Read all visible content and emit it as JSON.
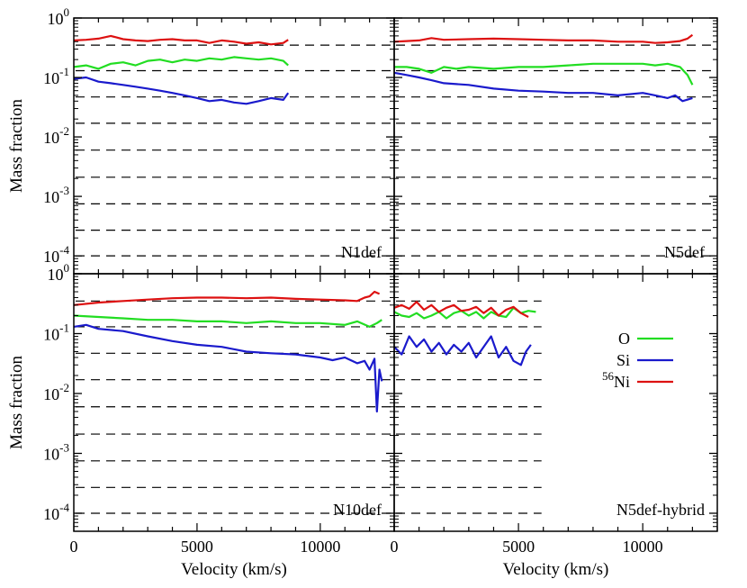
{
  "chart_data": {
    "type": "line",
    "layout": "2x2 panels, shared axes",
    "ylabel": "Mass fraction",
    "xlabel": "Velocity (km/s)",
    "xlim": [
      0,
      13000
    ],
    "ylim": [
      5e-05,
      1
    ],
    "yscale": "log",
    "x_ticks": [
      0,
      5000,
      10000
    ],
    "x_tick_labels": [
      "0",
      "5000",
      "10000"
    ],
    "y_ticks": [
      1,
      0.1,
      0.01,
      0.001,
      0.0001
    ],
    "y_tick_labels": [
      {
        "base": "10",
        "exp": "0"
      },
      {
        "base": "10",
        "exp": "-1"
      },
      {
        "base": "10",
        "exp": "-2"
      },
      {
        "base": "10",
        "exp": "-3"
      },
      {
        "base": "10",
        "exp": "-4"
      }
    ],
    "dashed_reference_levels": [
      0.35,
      0.13,
      0.047,
      0.017,
      0.006,
      0.0021,
      0.00075,
      0.00027,
      0.0001
    ],
    "legend": {
      "placement": "right-middle of bottom-right panel",
      "entries": [
        {
          "label": "O",
          "color": "#22dd22"
        },
        {
          "label": "Si",
          "color": "#1a1acc"
        },
        {
          "label_sup": "56",
          "label": "Ni",
          "color": "#dd1111"
        }
      ]
    },
    "colors": {
      "O": "#22dd22",
      "Si": "#1a1acc",
      "Ni56": "#dd1111"
    },
    "panels": [
      {
        "label": "N1def",
        "position": "top-left",
        "dash_xmax": 13000,
        "series": [
          {
            "name": "O",
            "x": [
              0,
              500,
              1000,
              1500,
              2000,
              2500,
              3000,
              3500,
              4000,
              4500,
              5000,
              5500,
              6000,
              6500,
              7000,
              7500,
              8000,
              8500,
              8700
            ],
            "y": [
              0.15,
              0.16,
              0.14,
              0.17,
              0.18,
              0.16,
              0.19,
              0.2,
              0.18,
              0.2,
              0.19,
              0.21,
              0.2,
              0.22,
              0.21,
              0.2,
              0.21,
              0.19,
              0.16
            ]
          },
          {
            "name": "Si",
            "x": [
              0,
              500,
              1000,
              1500,
              2000,
              2500,
              3000,
              3500,
              4000,
              4500,
              5000,
              5500,
              6000,
              6500,
              7000,
              7500,
              8000,
              8500,
              8700
            ],
            "y": [
              0.095,
              0.1,
              0.085,
              0.08,
              0.075,
              0.07,
              0.065,
              0.06,
              0.055,
              0.05,
              0.045,
              0.04,
              0.042,
              0.038,
              0.036,
              0.04,
              0.045,
              0.042,
              0.055
            ]
          },
          {
            "name": "56Ni",
            "x": [
              0,
              500,
              1000,
              1500,
              2000,
              2500,
              3000,
              3500,
              4000,
              4500,
              5000,
              5500,
              6000,
              6500,
              7000,
              7500,
              8000,
              8500,
              8700
            ],
            "y": [
              0.42,
              0.43,
              0.45,
              0.5,
              0.44,
              0.42,
              0.41,
              0.43,
              0.44,
              0.42,
              0.42,
              0.38,
              0.42,
              0.4,
              0.37,
              0.39,
              0.36,
              0.38,
              0.43
            ]
          }
        ]
      },
      {
        "label": "N5def",
        "position": "top-right",
        "dash_xmax": 13000,
        "series": [
          {
            "name": "O",
            "x": [
              0,
              500,
              1000,
              1500,
              2000,
              2500,
              3000,
              4000,
              5000,
              6000,
              7000,
              8000,
              9000,
              10000,
              10500,
              11000,
              11500,
              11800,
              12000
            ],
            "y": [
              0.15,
              0.15,
              0.14,
              0.12,
              0.15,
              0.14,
              0.15,
              0.14,
              0.15,
              0.15,
              0.16,
              0.17,
              0.17,
              0.17,
              0.16,
              0.17,
              0.15,
              0.11,
              0.075
            ]
          },
          {
            "name": "Si",
            "x": [
              0,
              500,
              1000,
              1500,
              2000,
              3000,
              4000,
              5000,
              6000,
              7000,
              8000,
              9000,
              10000,
              10500,
              11000,
              11300,
              11600,
              12000
            ],
            "y": [
              0.12,
              0.11,
              0.1,
              0.09,
              0.08,
              0.075,
              0.065,
              0.06,
              0.058,
              0.055,
              0.055,
              0.05,
              0.055,
              0.05,
              0.045,
              0.05,
              0.04,
              0.045
            ]
          },
          {
            "name": "56Ni",
            "x": [
              0,
              500,
              1000,
              1500,
              2000,
              3000,
              4000,
              5000,
              6000,
              7000,
              8000,
              9000,
              10000,
              10500,
              11000,
              11500,
              11800,
              12000
            ],
            "y": [
              0.4,
              0.41,
              0.42,
              0.46,
              0.43,
              0.44,
              0.45,
              0.44,
              0.43,
              0.42,
              0.42,
              0.4,
              0.4,
              0.38,
              0.39,
              0.41,
              0.45,
              0.52
            ]
          }
        ]
      },
      {
        "label": "N10def",
        "position": "bottom-left",
        "dash_xmax": 13000,
        "series": [
          {
            "name": "O",
            "x": [
              0,
              1000,
              2000,
              3000,
              4000,
              5000,
              6000,
              7000,
              8000,
              9000,
              10000,
              11000,
              11500,
              12000,
              12300,
              12500
            ],
            "y": [
              0.2,
              0.19,
              0.18,
              0.17,
              0.17,
              0.16,
              0.16,
              0.15,
              0.16,
              0.15,
              0.15,
              0.14,
              0.16,
              0.13,
              0.15,
              0.17
            ]
          },
          {
            "name": "Si",
            "x": [
              0,
              500,
              1000,
              2000,
              3000,
              4000,
              5000,
              6000,
              7000,
              8000,
              9000,
              10000,
              10500,
              11000,
              11500,
              11800,
              12000,
              12200,
              12300,
              12400,
              12500
            ],
            "y": [
              0.13,
              0.14,
              0.12,
              0.11,
              0.09,
              0.075,
              0.065,
              0.06,
              0.05,
              0.047,
              0.045,
              0.04,
              0.036,
              0.04,
              0.032,
              0.035,
              0.025,
              0.038,
              0.005,
              0.025,
              0.016
            ]
          },
          {
            "name": "56Ni",
            "x": [
              0,
              1000,
              2000,
              3000,
              4000,
              5000,
              6000,
              7000,
              8000,
              9000,
              10000,
              11000,
              11500,
              11800,
              12000,
              12200,
              12400
            ],
            "y": [
              0.3,
              0.33,
              0.35,
              0.37,
              0.39,
              0.4,
              0.4,
              0.39,
              0.4,
              0.38,
              0.37,
              0.36,
              0.35,
              0.4,
              0.42,
              0.5,
              0.46
            ]
          }
        ]
      },
      {
        "label": "N5def-hybrid",
        "position": "bottom-right",
        "dash_xmax": 6000,
        "series": [
          {
            "name": "O",
            "x": [
              0,
              300,
              600,
              900,
              1200,
              1500,
              1800,
              2100,
              2400,
              2700,
              3000,
              3300,
              3600,
              3900,
              4200,
              4500,
              4800,
              5100,
              5400,
              5700
            ],
            "y": [
              0.23,
              0.2,
              0.19,
              0.22,
              0.18,
              0.2,
              0.23,
              0.18,
              0.22,
              0.24,
              0.2,
              0.23,
              0.18,
              0.23,
              0.2,
              0.19,
              0.27,
              0.22,
              0.24,
              0.23
            ]
          },
          {
            "name": "Si",
            "x": [
              0,
              300,
              600,
              900,
              1200,
              1500,
              1800,
              2100,
              2400,
              2700,
              3000,
              3300,
              3600,
              3900,
              4200,
              4500,
              4800,
              5100,
              5300,
              5500
            ],
            "y": [
              0.06,
              0.045,
              0.09,
              0.06,
              0.08,
              0.05,
              0.07,
              0.045,
              0.065,
              0.05,
              0.07,
              0.04,
              0.06,
              0.09,
              0.04,
              0.06,
              0.035,
              0.03,
              0.05,
              0.065
            ]
          },
          {
            "name": "56Ni",
            "x": [
              0,
              300,
              600,
              900,
              1200,
              1500,
              1800,
              2100,
              2400,
              2700,
              3000,
              3300,
              3600,
              3900,
              4200,
              4500,
              4800,
              5100,
              5400
            ],
            "y": [
              0.27,
              0.3,
              0.26,
              0.34,
              0.25,
              0.3,
              0.23,
              0.27,
              0.3,
              0.24,
              0.25,
              0.28,
              0.22,
              0.27,
              0.2,
              0.25,
              0.28,
              0.22,
              0.19
            ]
          }
        ]
      }
    ]
  }
}
